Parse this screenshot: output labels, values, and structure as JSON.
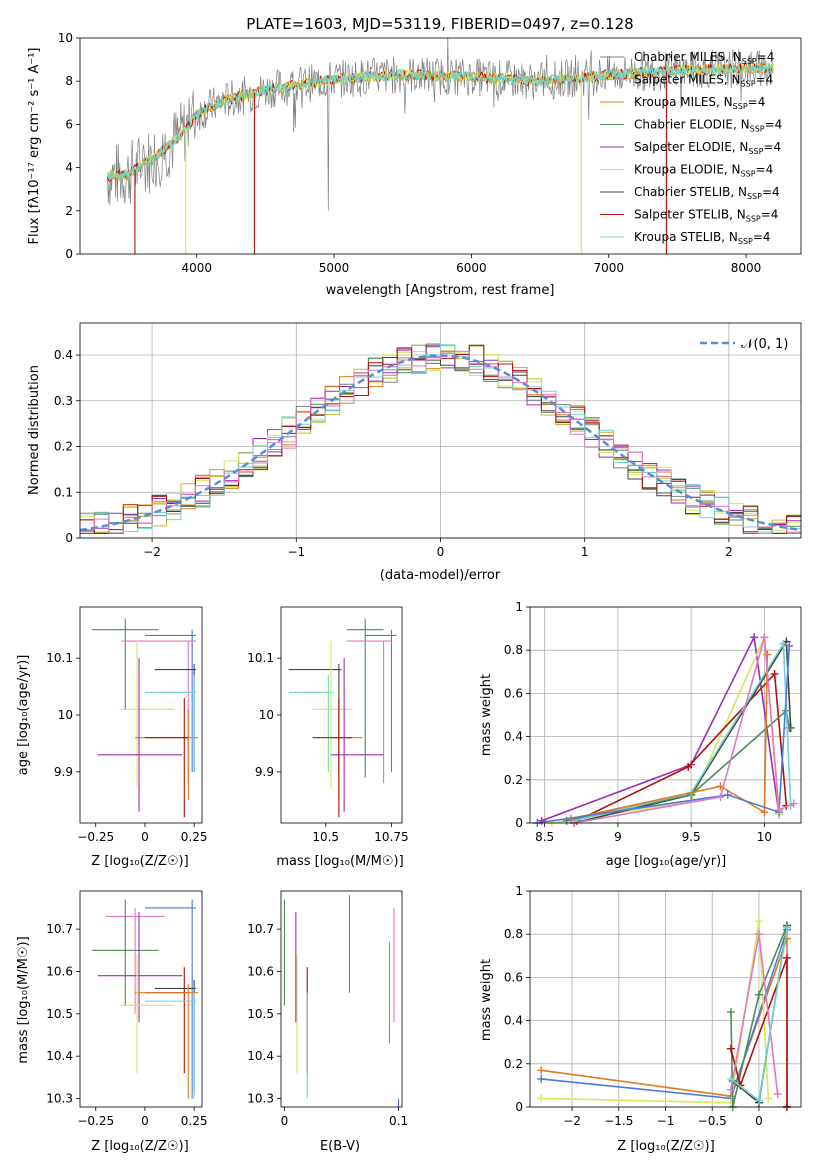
{
  "colors": {
    "chabrier_miles": "#7f7f7f",
    "salpeter_miles": "#bcbd22",
    "kroupa_miles": "#e07b20",
    "chabrier_elodie": "#4c8c5c",
    "salpeter_elodie": "#9a2fb5",
    "kroupa_elodie": "#d6e85a",
    "chabrier_stelib": "#444444",
    "salpeter_stelib": "#b01010",
    "kroupa_stelib": "#6fd3d3",
    "pink": "#e377c2",
    "blue": "#4f78d8",
    "normal_dash": "#5a8bd6"
  },
  "chart_data": [
    {
      "id": "spectrum",
      "type": "line",
      "title": "PLATE=1603, MJD=53119, FIBERID=0497, z=0.128",
      "xlabel": "wavelength [Angstrom, rest frame]",
      "ylabel": "Flux [fλ10⁻¹⁷ erg cm⁻² s⁻¹ A⁻¹]",
      "xlim": [
        3150,
        8400
      ],
      "ylim": [
        0,
        10
      ],
      "xticks": [
        4000,
        5000,
        6000,
        7000,
        8000
      ],
      "yticks": [
        0,
        2,
        4,
        6,
        8,
        10
      ],
      "continuum": {
        "x": [
          3350,
          3500,
          3700,
          3900,
          4000,
          4200,
          4500,
          5000,
          5500,
          6000,
          6500,
          7000,
          7500,
          8000,
          8200
        ],
        "y": [
          3.6,
          3.7,
          4.5,
          5.6,
          6.5,
          7.1,
          7.6,
          8.1,
          8.3,
          8.2,
          8.0,
          8.3,
          8.5,
          8.6,
          8.6
        ]
      },
      "legend": [
        {
          "label": "Chabrier MILES, N",
          "sub": "SSP",
          "suffix": "=4",
          "color_key": "chabrier_miles"
        },
        {
          "label": "Salpeter MILES, N",
          "sub": "SSP",
          "suffix": "=4",
          "color_key": "salpeter_miles"
        },
        {
          "label": "Kroupa MILES, N",
          "sub": "SSP",
          "suffix": "=4",
          "color_key": "kroupa_miles"
        },
        {
          "label": "Chabrier ELODIE, N",
          "sub": "SSP",
          "suffix": "=4",
          "color_key": "chabrier_elodie"
        },
        {
          "label": "Salpeter ELODIE, N",
          "sub": "SSP",
          "suffix": "=4",
          "color_key": "salpeter_elodie"
        },
        {
          "label": "Kroupa ELODIE, N",
          "sub": "SSP",
          "suffix": "=4",
          "color_key": "kroupa_elodie"
        },
        {
          "label": "Chabrier STELIB, N",
          "sub": "SSP",
          "suffix": "=4",
          "color_key": "chabrier_stelib"
        },
        {
          "label": "Salpeter STELIB, N",
          "sub": "SSP",
          "suffix": "=4",
          "color_key": "salpeter_stelib"
        },
        {
          "label": "Kroupa STELIB, N",
          "sub": "SSP",
          "suffix": "=4",
          "color_key": "kroupa_stelib"
        }
      ]
    },
    {
      "id": "residuals",
      "type": "line",
      "xlabel": "(data-model)/error",
      "ylabel": "Normed distribution",
      "xlim": [
        -2.5,
        2.5
      ],
      "ylim": [
        0,
        0.47
      ],
      "xticks": [
        -2,
        -1,
        0,
        1,
        2
      ],
      "yticks": [
        0.0,
        0.1,
        0.2,
        0.3,
        0.4
      ],
      "legend": [
        {
          "label": "𝒩(0, 1)",
          "color_key": "normal_dash"
        }
      ]
    },
    {
      "id": "age_vs_Z",
      "type": "scatter",
      "xlabel": "Z [log₁₀(Z/Z☉)]",
      "ylabel": "age  [log₁₀(age/yr)]",
      "xlim": [
        -0.33,
        0.29
      ],
      "ylim": [
        9.81,
        10.19
      ],
      "xticks": [
        -0.25,
        0.0,
        0.25
      ],
      "yticks": [
        9.9,
        10.0,
        10.1
      ],
      "points": [
        {
          "c": "chabrier_elodie",
          "x": -0.1,
          "y": 10.15,
          "x0": -0.27,
          "x1": 0.07,
          "y0": 10.01,
          "y1": 10.17
        },
        {
          "c": "blue",
          "x": 0.24,
          "y": 10.14,
          "x0": 0.0,
          "x1": 0.26,
          "y0": 9.9,
          "y1": 10.15
        },
        {
          "c": "pink",
          "x": 0.22,
          "y": 10.13,
          "x0": -0.12,
          "x1": 0.26,
          "y0": 9.88,
          "y1": 10.13
        },
        {
          "c": "chabrier_stelib",
          "x": 0.25,
          "y": 10.08,
          "x0": 0.05,
          "x1": 0.26,
          "y0": 9.9,
          "y1": 10.09
        },
        {
          "c": "kroupa_stelib",
          "x": 0.25,
          "y": 10.04,
          "x0": 0.0,
          "x1": 0.26,
          "y0": 9.9,
          "y1": 10.07
        },
        {
          "c": "kroupa_elodie",
          "x": -0.04,
          "y": 10.01,
          "x0": -0.13,
          "x1": 0.15,
          "y0": 9.87,
          "y1": 10.13
        },
        {
          "c": "kroupa_miles",
          "x": 0.22,
          "y": 9.96,
          "x0": -0.05,
          "x1": 0.27,
          "y0": 9.85,
          "y1": 10.01
        },
        {
          "c": "salpeter_stelib",
          "x": 0.2,
          "y": 9.96,
          "x0": 0.0,
          "x1": 0.22,
          "y0": 9.82,
          "y1": 10.03
        },
        {
          "c": "salpeter_elodie",
          "x": -0.03,
          "y": 9.93,
          "x0": -0.24,
          "x1": 0.19,
          "y0": 9.83,
          "y1": 10.1
        }
      ]
    },
    {
      "id": "age_vs_mass",
      "type": "scatter",
      "xlabel": "mass [log₁₀(M/M☉)]",
      "ylabel": "",
      "xlim": [
        10.33,
        10.79
      ],
      "ylim": [
        9.81,
        10.19
      ],
      "xticks": [
        10.5,
        10.75
      ],
      "yticks": [
        9.9,
        10.0,
        10.1
      ],
      "points": [
        {
          "c": "chabrier_elodie",
          "x": 10.65,
          "y": 10.15,
          "x0": 10.58,
          "x1": 10.72,
          "y0": 9.89,
          "y1": 10.17
        },
        {
          "c": "blue",
          "x": 10.75,
          "y": 10.14,
          "x0": 10.65,
          "x1": 10.77,
          "y0": 9.9,
          "y1": 10.15
        },
        {
          "c": "pink",
          "x": 10.72,
          "y": 10.13,
          "x0": 10.58,
          "x1": 10.75,
          "y0": 9.88,
          "y1": 10.13
        },
        {
          "c": "chabrier_stelib",
          "x": 10.55,
          "y": 10.08,
          "x0": 10.36,
          "x1": 10.56,
          "y0": 9.9,
          "y1": 10.09
        },
        {
          "c": "kroupa_stelib",
          "x": 10.51,
          "y": 10.04,
          "x0": 10.36,
          "x1": 10.53,
          "y0": 9.9,
          "y1": 10.07
        },
        {
          "c": "kroupa_elodie",
          "x": 10.52,
          "y": 10.01,
          "x0": 10.45,
          "x1": 10.6,
          "y0": 9.87,
          "y1": 10.13
        },
        {
          "c": "kroupa_miles",
          "x": 10.55,
          "y": 9.96,
          "x0": 10.52,
          "x1": 10.64,
          "y0": 9.85,
          "y1": 10.01
        },
        {
          "c": "salpeter_stelib",
          "x": 10.55,
          "y": 9.96,
          "x0": 10.45,
          "x1": 10.6,
          "y0": 9.82,
          "y1": 10.03
        },
        {
          "c": "salpeter_elodie",
          "x": 10.57,
          "y": 9.93,
          "x0": 10.52,
          "x1": 10.72,
          "y0": 9.83,
          "y1": 10.1
        }
      ]
    },
    {
      "id": "weight_vs_age",
      "type": "line",
      "xlabel": "age  [log₁₀(age/yr)]",
      "ylabel": "mass weight",
      "xlim": [
        8.4,
        10.25
      ],
      "ylim": [
        0,
        1
      ],
      "xticks": [
        8.5,
        9.0,
        9.5,
        10.0
      ],
      "yticks": [
        0.0,
        0.2,
        0.4,
        0.6,
        0.8,
        1.0
      ],
      "series": [
        {
          "c": "salpeter_elodie",
          "x": [
            8.48,
            9.5,
            9.93,
            10.1
          ],
          "y": [
            0.01,
            0.27,
            0.86,
            0.04
          ]
        },
        {
          "c": "kroupa_elodie",
          "x": [
            8.55,
            9.5,
            10.0,
            10.1
          ],
          "y": [
            0.0,
            0.1,
            0.86,
            0.04
          ]
        },
        {
          "c": "salpeter_stelib",
          "x": [
            8.72,
            9.48,
            10.07,
            10.15
          ],
          "y": [
            0.01,
            0.26,
            0.69,
            0.08
          ]
        },
        {
          "c": "chabrier_stelib",
          "x": [
            8.7,
            9.5,
            10.15,
            10.18
          ],
          "y": [
            0.0,
            0.13,
            0.84,
            0.44
          ]
        },
        {
          "c": "chabrier_elodie",
          "x": [
            8.65,
            9.5,
            10.15,
            10.17
          ],
          "y": [
            0.01,
            0.13,
            0.52,
            0.44
          ]
        },
        {
          "c": "kroupa_stelib",
          "x": [
            8.7,
            9.5,
            10.13,
            10.18
          ],
          "y": [
            0.01,
            0.14,
            0.83,
            0.08
          ]
        },
        {
          "c": "kroupa_miles",
          "x": [
            8.68,
            9.7,
            10.0,
            10.02
          ],
          "y": [
            0.02,
            0.17,
            0.05,
            0.78
          ]
        },
        {
          "c": "blue",
          "x": [
            8.45,
            9.75,
            10.1,
            10.17
          ],
          "y": [
            0.0,
            0.13,
            0.05,
            0.82
          ]
        },
        {
          "c": "pink",
          "x": [
            8.7,
            9.7,
            10.0,
            10.1,
            10.2
          ],
          "y": [
            0.0,
            0.12,
            0.86,
            0.06,
            0.09
          ]
        }
      ]
    },
    {
      "id": "mass_vs_Z",
      "type": "scatter",
      "xlabel": "Z [log₁₀(Z/Z☉)]",
      "ylabel": "mass [log₁₀(M/M☉)]",
      "xlim": [
        -0.33,
        0.29
      ],
      "ylim": [
        10.28,
        10.79
      ],
      "xticks": [
        -0.25,
        0.0,
        0.25
      ],
      "yticks": [
        10.3,
        10.4,
        10.5,
        10.6,
        10.7
      ],
      "points": [
        {
          "c": "blue",
          "x": 0.24,
          "y": 10.75,
          "x0": 0.0,
          "x1": 0.26,
          "y0": 10.3,
          "y1": 10.77
        },
        {
          "c": "pink",
          "x": -0.05,
          "y": 10.73,
          "x0": -0.2,
          "x1": 0.1,
          "y0": 10.5,
          "y1": 10.75
        },
        {
          "c": "chabrier_elodie",
          "x": -0.1,
          "y": 10.65,
          "x0": -0.27,
          "x1": 0.07,
          "y0": 10.52,
          "y1": 10.77
        },
        {
          "c": "salpeter_elodie",
          "x": -0.03,
          "y": 10.59,
          "x0": -0.24,
          "x1": 0.19,
          "y0": 10.48,
          "y1": 10.74
        },
        {
          "c": "salpeter_stelib",
          "x": 0.2,
          "y": 10.55,
          "x0": 0.0,
          "x1": 0.22,
          "y0": 10.36,
          "y1": 10.61
        },
        {
          "c": "chabrier_stelib",
          "x": 0.25,
          "y": 10.56,
          "x0": 0.05,
          "x1": 0.26,
          "y0": 10.31,
          "y1": 10.58
        },
        {
          "c": "kroupa_miles",
          "x": 0.22,
          "y": 10.55,
          "x0": -0.05,
          "x1": 0.27,
          "y0": 10.3,
          "y1": 10.57
        },
        {
          "c": "kroupa_elodie",
          "x": -0.04,
          "y": 10.52,
          "x0": -0.13,
          "x1": 0.15,
          "y0": 10.36,
          "y1": 10.64
        },
        {
          "c": "kroupa_stelib",
          "x": 0.25,
          "y": 10.53,
          "x0": 0.0,
          "x1": 0.26,
          "y0": 10.3,
          "y1": 10.55
        }
      ]
    },
    {
      "id": "mass_vs_ebv",
      "type": "scatter",
      "xlabel": "E(B-V)",
      "ylabel": "",
      "xlim": [
        -0.003,
        0.103
      ],
      "ylim": [
        10.28,
        10.79
      ],
      "xticks": [
        0.0,
        0.1
      ],
      "yticks": [
        10.3,
        10.4,
        10.5,
        10.6,
        10.7
      ],
      "points": [
        {
          "c": "chabrier_elodie",
          "x": 0.0,
          "y": 10.65,
          "y0": 10.52,
          "y1": 10.77
        },
        {
          "c": "salpeter_elodie",
          "x": 0.01,
          "y": 10.59,
          "y0": 10.48,
          "y1": 10.74
        },
        {
          "c": "kroupa_elodie",
          "x": 0.011,
          "y": 10.52,
          "y0": 10.36,
          "y1": 10.64
        },
        {
          "c": "salpeter_stelib",
          "x": 0.02,
          "y": 10.55,
          "y0": 10.36,
          "y1": 10.61
        },
        {
          "c": "kroupa_stelib",
          "x": 0.02,
          "y": 10.53,
          "y0": 10.3,
          "y1": 10.55
        },
        {
          "c": "blue",
          "x": 0.057,
          "y": 10.7,
          "y0": 10.55,
          "y1": 10.78
        },
        {
          "c": "kroupa_miles",
          "x": 0.092,
          "y": 10.55,
          "y0": 10.43,
          "y1": 10.67
        },
        {
          "c": "pink",
          "x": 0.096,
          "y": 10.6,
          "y0": 10.48,
          "y1": 10.75
        },
        {
          "c": "blue",
          "x": 0.1,
          "y": 10.29,
          "y0": 10.28,
          "y1": 10.3
        }
      ]
    },
    {
      "id": "weight_vs_Z",
      "type": "line",
      "xlabel": "Z [log₁₀(Z/Z☉)]",
      "ylabel": "mass weight",
      "xlim": [
        -2.45,
        0.45
      ],
      "ylim": [
        0,
        1
      ],
      "xticks": [
        -2.0,
        -1.5,
        -1.0,
        -0.5,
        0.0
      ],
      "yticks": [
        0.0,
        0.2,
        0.4,
        0.6,
        0.8,
        1.0
      ],
      "series": [
        {
          "c": "kroupa_miles",
          "x": [
            -2.33,
            -0.3,
            0.3,
            0.3
          ],
          "y": [
            0.17,
            0.05,
            0.78,
            0.0
          ]
        },
        {
          "c": "blue",
          "x": [
            -2.33,
            -0.3,
            0.3
          ],
          "y": [
            0.13,
            0.04,
            0.82
          ]
        },
        {
          "c": "kroupa_elodie",
          "x": [
            -2.33,
            -0.3,
            0.0,
            0.1
          ],
          "y": [
            0.04,
            0.02,
            0.86,
            0.04
          ]
        },
        {
          "c": "chabrier_elodie",
          "x": [
            -0.3,
            -0.28,
            0.0,
            0.3
          ],
          "y": [
            0.44,
            0.0,
            0.52,
            0.84
          ]
        },
        {
          "c": "salpeter_stelib",
          "x": [
            -0.3,
            -0.2,
            0.3,
            0.3
          ],
          "y": [
            0.27,
            0.1,
            0.69,
            0.0
          ]
        },
        {
          "c": "chabrier_stelib",
          "x": [
            -0.28,
            0.0,
            0.3
          ],
          "y": [
            0.12,
            0.02,
            0.84
          ]
        },
        {
          "c": "pink",
          "x": [
            -0.3,
            0.0,
            0.2
          ],
          "y": [
            0.08,
            0.8,
            0.06
          ]
        },
        {
          "c": "kroupa_stelib",
          "x": [
            -0.3,
            0.0,
            0.3
          ],
          "y": [
            0.13,
            0.03,
            0.83
          ]
        }
      ]
    }
  ]
}
